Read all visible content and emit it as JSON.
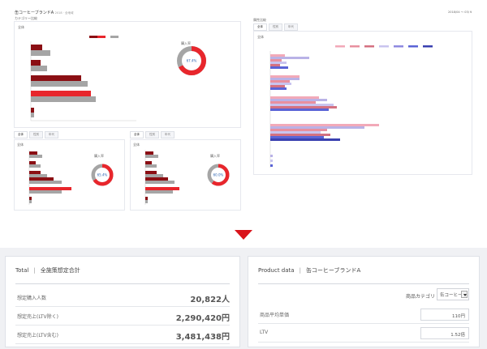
{
  "dashboard": {
    "title": "缶コーヒーブランドA",
    "title_suffix": "2018 · 全地域",
    "date_text": "2018/04 〜 03/ ¥",
    "left_heading": "カテゴリー比較",
    "panel_main_label": "全体",
    "panel_sub1_label": "全体",
    "panel_sub2_label": "全体",
    "right_panel_title": "属性比較",
    "right_panel_label": "全体",
    "tabs_right": [
      "全体",
      "性別",
      "年代"
    ],
    "tabs_sub1": [
      "全体",
      "性別",
      "年代"
    ],
    "tabs_sub2": [
      "全体",
      "性別",
      "年代"
    ],
    "donut_label": "購入率",
    "donut_main_pct": "67.4%",
    "donut_sub1_pct": "65.4%",
    "donut_sub2_pct": "60.0%",
    "colors": {
      "dark_red": "#8b0f14",
      "red": "#e8262c",
      "gray": "#a5a5a5",
      "pink": "#f2a9b8",
      "lavender": "#b9b2e6",
      "blue": "#5a63d6",
      "accent": "#d9141b"
    }
  },
  "summary": {
    "total": {
      "title": "Total",
      "subtitle": "全施策想定合計",
      "rows": [
        {
          "label": "想定購入人数",
          "value": "20,822人"
        },
        {
          "label": "想定売上(LTV除く)",
          "value": "2,290,420円"
        },
        {
          "label": "想定売上(LTV含む)",
          "value": "3,481,438円"
        }
      ]
    },
    "product": {
      "title": "Product data",
      "subtitle": "缶コーヒーブランドA",
      "category_label": "商品カテゴリ",
      "category_value": "缶コーヒー",
      "rows": [
        {
          "label": "商品平均単価",
          "value": "110円"
        },
        {
          "label": "LTV",
          "value": "1.52倍"
        }
      ]
    }
  }
}
